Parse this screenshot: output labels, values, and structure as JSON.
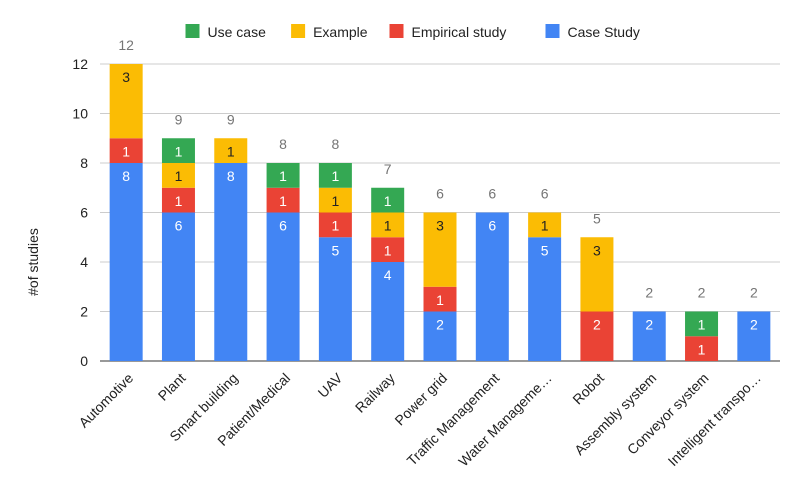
{
  "chart_data": {
    "type": "bar",
    "stacked": true,
    "title": "",
    "xlabel": "",
    "ylabel": "#of studies",
    "ylim": [
      0,
      12
    ],
    "yticks": [
      0,
      2,
      4,
      6,
      8,
      10,
      12
    ],
    "grid": true,
    "legend_position": "top",
    "categories": [
      "Automotive",
      "Plant",
      "Smart building",
      "Patient/Medical",
      "UAV",
      "Railway",
      "Power grid",
      "Traffic Management",
      "Water Manageme…",
      "Robot",
      "Assembly system",
      "Conveyor system",
      "Intelligent transpo…"
    ],
    "series": [
      {
        "name": "Case Study",
        "color": "#4285f4",
        "label_color": "#ffffff",
        "values": [
          8,
          6,
          8,
          6,
          5,
          4,
          2,
          6,
          5,
          0,
          2,
          0,
          2
        ]
      },
      {
        "name": "Empirical study",
        "color": "#ea4335",
        "label_color": "#ffffff",
        "values": [
          1,
          1,
          0,
          1,
          1,
          1,
          1,
          0,
          0,
          2,
          0,
          1,
          0
        ]
      },
      {
        "name": "Example",
        "color": "#fbbc04",
        "label_color": "#222222",
        "values": [
          3,
          1,
          1,
          0,
          1,
          1,
          3,
          0,
          1,
          3,
          0,
          0,
          0
        ]
      },
      {
        "name": "Use case",
        "color": "#34a853",
        "label_color": "#ffffff",
        "values": [
          0,
          1,
          0,
          1,
          1,
          1,
          0,
          0,
          0,
          0,
          0,
          1,
          0
        ]
      }
    ],
    "totals": [
      12,
      9,
      9,
      8,
      8,
      7,
      6,
      6,
      6,
      5,
      2,
      2,
      2
    ],
    "legend_order": [
      "Use case",
      "Example",
      "Empirical study",
      "Case Study"
    ]
  }
}
